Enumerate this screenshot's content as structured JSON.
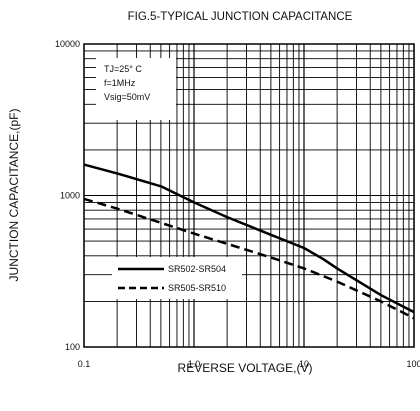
{
  "chart_data": {
    "type": "line",
    "title": "FIG.5-TYPICAL JUNCTION CAPACITANCE",
    "xlabel": "REVERSE VOLTAGE,(V)",
    "ylabel": "JUNCTION CAPACITANCE,(pF)",
    "x_scale": "log",
    "y_scale": "log",
    "xlim": [
      0.1,
      100
    ],
    "ylim": [
      100,
      10000
    ],
    "x_ticks": [
      0.1,
      1,
      10,
      100
    ],
    "x_tick_labels": [
      "0.1",
      "1.0",
      "10",
      "100"
    ],
    "y_ticks": [
      100,
      1000,
      10000
    ],
    "y_tick_labels": [
      "100",
      "1000",
      "10000"
    ],
    "grid": true,
    "conditions": [
      "TJ=25° C",
      "f=1MHz",
      "Vsig=50mV"
    ],
    "legend_placement": "lower-left",
    "series": [
      {
        "name": "SR502-SR504",
        "style": "solid",
        "x": [
          0.1,
          0.2,
          0.5,
          1,
          2,
          5,
          10,
          15,
          20,
          50,
          100
        ],
        "y": [
          1600,
          1400,
          1150,
          900,
          720,
          550,
          450,
          380,
          330,
          220,
          170
        ]
      },
      {
        "name": "SR505-SR510",
        "style": "dashed",
        "x": [
          0.1,
          0.2,
          0.5,
          1,
          2,
          5,
          10,
          20,
          50,
          100
        ],
        "y": [
          950,
          820,
          660,
          560,
          480,
          390,
          330,
          270,
          200,
          155
        ]
      }
    ]
  }
}
